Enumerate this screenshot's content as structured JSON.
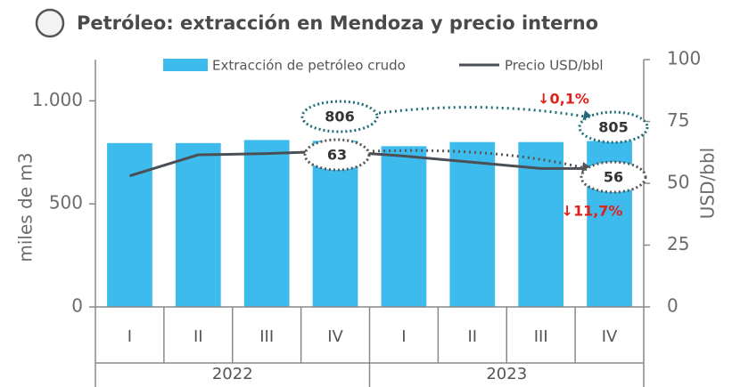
{
  "chart_data": {
    "type": "bar_line",
    "title": "Petróleo: extracción en Mendoza y precio interno",
    "categories": [
      "I",
      "II",
      "III",
      "IV",
      "I",
      "II",
      "III",
      "IV"
    ],
    "x_groups": [
      "2022",
      "2023"
    ],
    "series": [
      {
        "name": "Extracción de petróleo crudo",
        "color": "#3dbbec",
        "values": [
          795,
          795,
          810,
          806,
          780,
          800,
          800,
          805
        ]
      },
      {
        "name": "Precio USD/bbl",
        "color": "#4a4f56",
        "axis": "y2",
        "values": [
          53,
          61.5,
          62,
          63,
          61,
          58.5,
          56,
          56
        ]
      }
    ],
    "ylabel": "miles de m3",
    "y2label": "USD/bbl",
    "ylim": [
      0,
      1200
    ],
    "yticks": [
      0,
      500,
      {
        "value": 1000,
        "label": "1.000"
      }
    ],
    "y2lim": [
      0,
      100
    ],
    "y2ticks": [
      0,
      25,
      50,
      75,
      100
    ],
    "annotations": [
      "↓0,1%",
      "↓11,7%"
    ]
  }
}
